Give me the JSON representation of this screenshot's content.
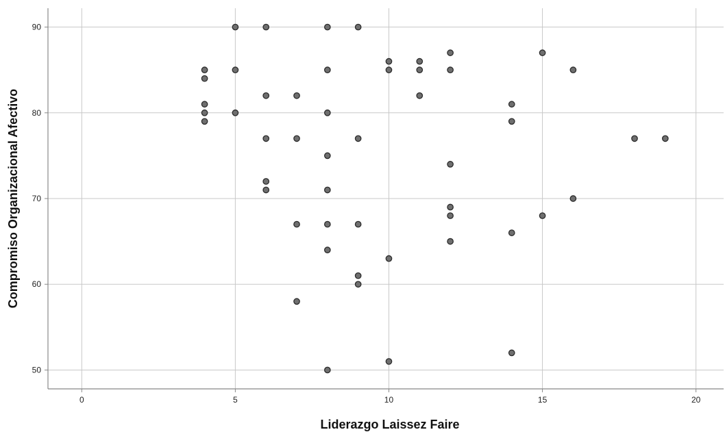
{
  "chart_data": {
    "type": "scatter",
    "title": "",
    "xlabel": "Liderazgo Laissez Faire",
    "ylabel": "Compromiso Organizacional Afectivo",
    "xlim": [
      -1.1,
      20.9
    ],
    "ylim": [
      47.8,
      92.2
    ],
    "xticks": [
      0,
      5,
      10,
      15,
      20
    ],
    "yticks": [
      50,
      60,
      70,
      80,
      90
    ],
    "grid": true,
    "colors": {
      "point_fill": "#6f6f6f",
      "point_stroke": "#2b2b2b",
      "grid": "#c8c8c8",
      "axis": "#888888"
    },
    "points": [
      {
        "x": 4,
        "y": 85
      },
      {
        "x": 4,
        "y": 84
      },
      {
        "x": 4,
        "y": 81
      },
      {
        "x": 4,
        "y": 80
      },
      {
        "x": 4,
        "y": 79
      },
      {
        "x": 5,
        "y": 90
      },
      {
        "x": 5,
        "y": 85
      },
      {
        "x": 5,
        "y": 80
      },
      {
        "x": 6,
        "y": 90
      },
      {
        "x": 6,
        "y": 82
      },
      {
        "x": 6,
        "y": 77
      },
      {
        "x": 6,
        "y": 72
      },
      {
        "x": 6,
        "y": 71
      },
      {
        "x": 7,
        "y": 82
      },
      {
        "x": 7,
        "y": 77
      },
      {
        "x": 7,
        "y": 67
      },
      {
        "x": 7,
        "y": 58
      },
      {
        "x": 8,
        "y": 90
      },
      {
        "x": 8,
        "y": 85
      },
      {
        "x": 8,
        "y": 80
      },
      {
        "x": 8,
        "y": 75
      },
      {
        "x": 8,
        "y": 71
      },
      {
        "x": 8,
        "y": 67
      },
      {
        "x": 8,
        "y": 64
      },
      {
        "x": 8,
        "y": 50
      },
      {
        "x": 9,
        "y": 90
      },
      {
        "x": 9,
        "y": 77
      },
      {
        "x": 9,
        "y": 67
      },
      {
        "x": 9,
        "y": 61
      },
      {
        "x": 9,
        "y": 60
      },
      {
        "x": 10,
        "y": 86
      },
      {
        "x": 10,
        "y": 85
      },
      {
        "x": 10,
        "y": 63
      },
      {
        "x": 10,
        "y": 51
      },
      {
        "x": 11,
        "y": 86
      },
      {
        "x": 11,
        "y": 85
      },
      {
        "x": 11,
        "y": 82
      },
      {
        "x": 12,
        "y": 87
      },
      {
        "x": 12,
        "y": 85
      },
      {
        "x": 12,
        "y": 74
      },
      {
        "x": 12,
        "y": 69
      },
      {
        "x": 12,
        "y": 68
      },
      {
        "x": 12,
        "y": 65
      },
      {
        "x": 14,
        "y": 81
      },
      {
        "x": 14,
        "y": 79
      },
      {
        "x": 14,
        "y": 66
      },
      {
        "x": 14,
        "y": 52
      },
      {
        "x": 15,
        "y": 87
      },
      {
        "x": 15,
        "y": 68
      },
      {
        "x": 16,
        "y": 85
      },
      {
        "x": 16,
        "y": 70
      },
      {
        "x": 18,
        "y": 77
      },
      {
        "x": 19,
        "y": 77
      }
    ]
  }
}
